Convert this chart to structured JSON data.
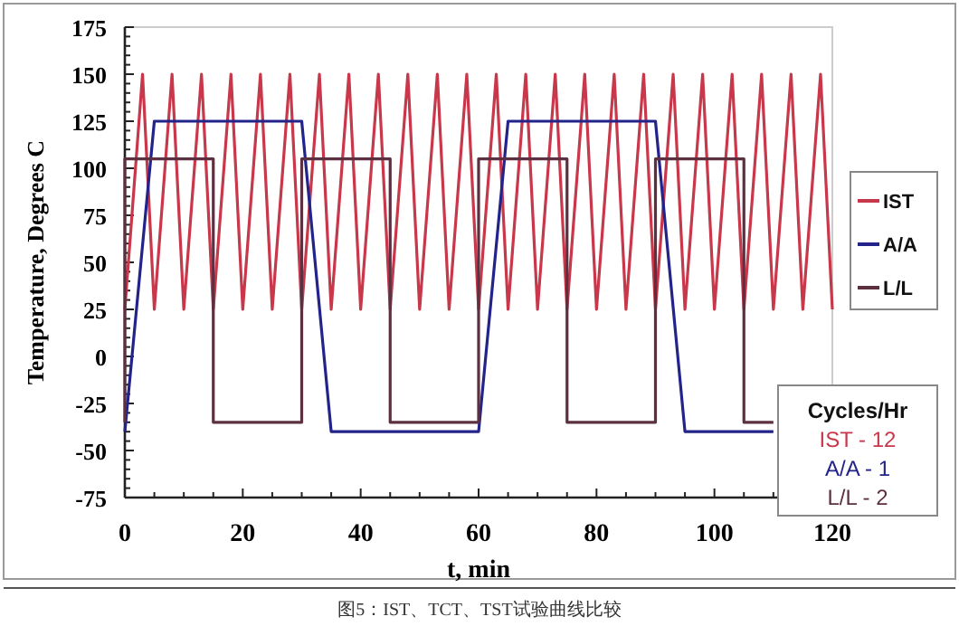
{
  "chart_data": {
    "type": "line",
    "xlabel": "t, min",
    "ylabel": "Temperature, Degrees C",
    "xlim": [
      0,
      120
    ],
    "xticks": [
      0,
      20,
      40,
      60,
      80,
      100,
      120
    ],
    "ylim": [
      -75,
      175
    ],
    "yticks": [
      -75,
      -50,
      -25,
      0,
      25,
      50,
      75,
      100,
      125,
      150,
      175
    ],
    "legend": "right",
    "grid": false,
    "marker": "none",
    "line_style": "solid",
    "series": [
      {
        "name": "IST",
        "color": "#c8374a",
        "x": [
          0,
          3,
          5,
          8,
          10,
          13,
          15,
          18,
          20,
          23,
          25,
          28,
          30,
          33,
          35,
          38,
          40,
          43,
          45,
          48,
          50,
          53,
          55,
          58,
          60,
          63,
          65,
          68,
          70,
          73,
          75,
          78,
          80,
          83,
          85,
          88,
          90,
          93,
          95,
          98,
          100,
          103,
          105,
          108,
          110,
          113,
          115,
          118,
          120
        ],
        "values": [
          25,
          150,
          25,
          150,
          25,
          150,
          25,
          150,
          25,
          150,
          25,
          150,
          25,
          150,
          25,
          150,
          25,
          150,
          25,
          150,
          25,
          150,
          25,
          150,
          25,
          150,
          25,
          150,
          25,
          150,
          25,
          150,
          25,
          150,
          25,
          150,
          25,
          150,
          25,
          150,
          25,
          150,
          25,
          150,
          25,
          150,
          25,
          150,
          25
        ]
      },
      {
        "name": "A/A",
        "color": "#23238c",
        "x": [
          0,
          5,
          30,
          35,
          60,
          65,
          90,
          95,
          110
        ],
        "values": [
          -40,
          125,
          125,
          -40,
          -40,
          125,
          125,
          -40,
          -40
        ]
      },
      {
        "name": "L/L",
        "color": "#5c3040",
        "x": [
          0,
          0,
          15,
          15,
          30,
          30,
          45,
          45,
          60,
          60,
          75,
          75,
          90,
          90,
          105,
          105,
          110
        ],
        "values": [
          -35,
          105,
          105,
          -35,
          -35,
          105,
          105,
          -35,
          -35,
          105,
          105,
          -35,
          -35,
          105,
          105,
          -35,
          -35
        ]
      }
    ],
    "annotations": [
      "Cycles/Hr",
      "IST - 12",
      "A/A - 1",
      "L/L - 2",
      "图5：IST、TCT、TST试验曲线比较"
    ]
  }
}
